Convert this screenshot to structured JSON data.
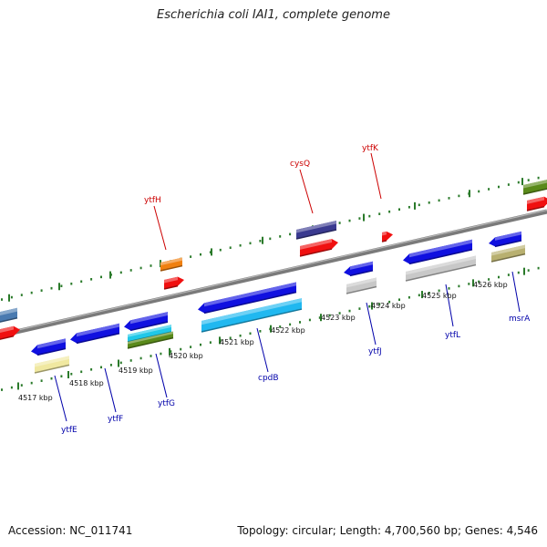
{
  "title": "Escherichia coli IAI1, complete genome",
  "footer": {
    "accession": "Accession: NC_011741",
    "summary": "Topology: circular; Length: 4,700,560 bp; Genes: 4,546"
  },
  "colors": {
    "background": "#ffffff",
    "backbone": "#8a8a8a",
    "tick_green": "#2a7a2a",
    "forward_label": "#cc0000",
    "reverse_label": "#0000aa"
  },
  "kbp_labels": [
    "4517 kbp",
    "4518 kbp",
    "4519 kbp",
    "4520 kbp",
    "4521 kbp",
    "4522 kbp",
    "4523 kbp",
    "4524 kbp",
    "4525 kbp",
    "4526 kbp"
  ],
  "forward_gene_labels": [
    "ytfH",
    "cysQ",
    "ytfK"
  ],
  "reverse_gene_labels": [
    "ytfE",
    "ytfF",
    "ytfG",
    "cpdB",
    "ytfJ",
    "ytfL",
    "msrA"
  ],
  "gene_colors": {
    "red": "#f01010",
    "orange": "#f08010",
    "navy": "#3a3a90",
    "olive_green": "#5a8a1a",
    "steel_blue": "#4a7ab0",
    "blue": "#1010e0",
    "pale_yellow": "#f0e8a0",
    "cyan": "#20c8e8",
    "sky_blue": "#20b8f0",
    "light_gray": "#c8c8c8",
    "khaki": "#b8b070"
  }
}
